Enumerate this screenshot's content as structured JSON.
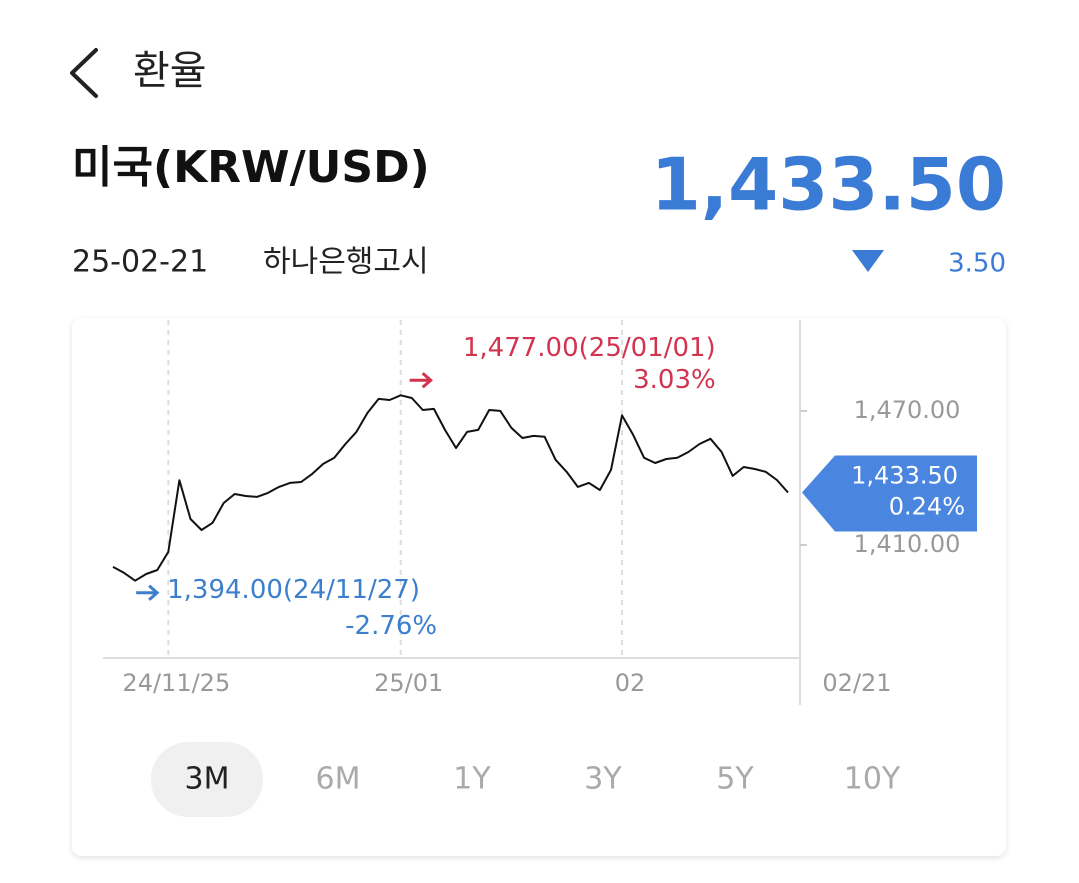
{
  "header": {
    "title": "환율"
  },
  "quote": {
    "name": "미국(KRW/USD)",
    "price": "1,433.50",
    "date": "25-02-21",
    "source": "하나은행고시",
    "change": "3.50"
  },
  "chart_data": {
    "type": "line",
    "categories": [
      null,
      null,
      null,
      null,
      null,
      "24/11/25",
      null,
      null,
      null,
      null,
      null,
      null,
      null,
      null,
      null,
      null,
      null,
      null,
      null,
      null,
      null,
      null,
      null,
      null,
      null,
      null,
      "25/01",
      null,
      null,
      null,
      null,
      null,
      null,
      null,
      null,
      null,
      null,
      null,
      null,
      null,
      null,
      null,
      null,
      null,
      null,
      null,
      "02",
      null,
      null,
      null,
      null,
      null,
      null,
      null,
      null,
      null,
      null,
      null,
      null,
      null,
      null,
      "02/21"
    ],
    "series": [
      {
        "color": "#111111",
        "values": [
          1400.2,
          1397.5,
          1394.0,
          1397.0,
          1398.8,
          1406.9,
          1439.0,
          1421.6,
          1416.7,
          1419.9,
          1428.8,
          1432.8,
          1431.9,
          1431.5,
          1433.3,
          1436.0,
          1437.8,
          1438.2,
          1441.8,
          1446.3,
          1449.0,
          1455.2,
          1460.6,
          1469.1,
          1475.4,
          1474.9,
          1477.0,
          1475.8,
          1470.4,
          1470.9,
          1461.5,
          1453.4,
          1460.6,
          1461.5,
          1470.4,
          1470.0,
          1462.4,
          1457.9,
          1458.8,
          1458.4,
          1448.1,
          1442.7,
          1436.0,
          1437.8,
          1434.6,
          1443.6,
          1468.0,
          1459.3,
          1449.0,
          1446.7,
          1448.5,
          1449.0,
          1451.6,
          1455.2,
          1457.5,
          1451.6,
          1440.9,
          1444.9,
          1444.0,
          1442.7,
          1439.1,
          1433.5
        ]
      }
    ],
    "ylim": [
      1359.4,
      1510.7
    ],
    "yticks": [
      {
        "value": 1410,
        "label": "1,410.00"
      },
      {
        "value": 1470,
        "label": "1,470.00"
      }
    ],
    "annotations": [
      {
        "value": 1477.0,
        "label": "1,477.00(25/01/01)",
        "change": "3.03%",
        "color": "#d0344f"
      },
      {
        "value": 1394.0,
        "label": "1,394.00(24/11/27)",
        "change": "-2.76%",
        "color": "#3c7fcc"
      }
    ],
    "current": {
      "value": 1433.5,
      "label": "1,433.50",
      "change": "0.24%",
      "color": "#4a86e0"
    }
  },
  "periods": {
    "options": [
      "3M",
      "6M",
      "1Y",
      "3Y",
      "5Y",
      "10Y"
    ],
    "selected": 0
  }
}
